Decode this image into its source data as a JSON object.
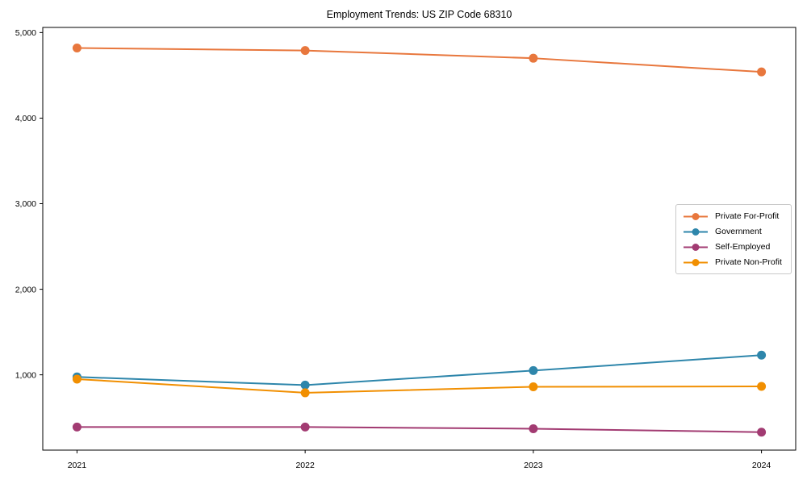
{
  "chart_data": {
    "type": "line",
    "title": "Employment Trends: US ZIP Code 68310",
    "xlabel": "",
    "ylabel": "",
    "x": [
      2021,
      2022,
      2023,
      2024
    ],
    "x_tick_labels": [
      "2021",
      "2022",
      "2023",
      "2024"
    ],
    "y_ticks": [
      1000,
      2000,
      3000,
      4000,
      5000
    ],
    "y_tick_labels": [
      "1,000",
      "2,000",
      "3,000",
      "4,000",
      "5,000"
    ],
    "xlim": [
      2020.85,
      2024.15
    ],
    "ylim": [
      120,
      5060
    ],
    "grid": false,
    "legend_position": "center-right",
    "frame_color": "#000000",
    "background_color": "#ffffff",
    "series": [
      {
        "name": "Private For-Profit",
        "color": "#E8773D",
        "values": [
          4820,
          4790,
          4700,
          4540
        ]
      },
      {
        "name": "Government",
        "color": "#2E86AB",
        "values": [
          975,
          880,
          1050,
          1230
        ]
      },
      {
        "name": "Self-Employed",
        "color": "#A23B72",
        "values": [
          390,
          390,
          370,
          330
        ]
      },
      {
        "name": "Private Non-Profit",
        "color": "#F18F01",
        "values": [
          950,
          790,
          860,
          865
        ]
      }
    ]
  }
}
